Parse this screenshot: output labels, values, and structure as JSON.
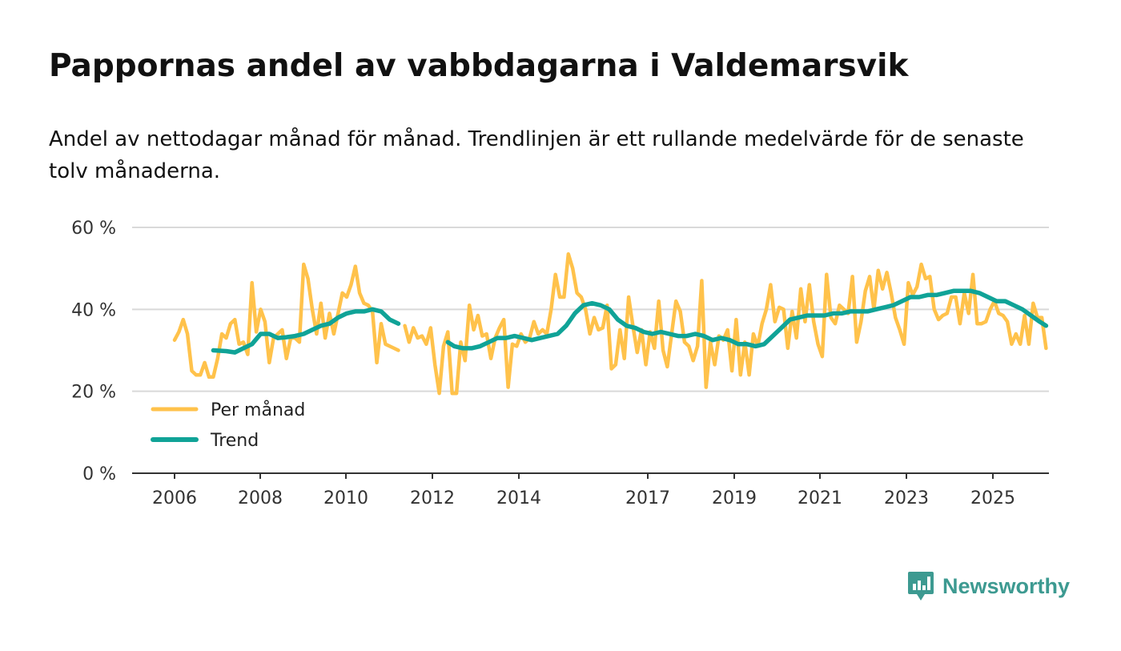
{
  "title": "Pappornas andel av vabbdagarna i Valdemarsvik",
  "subtitle": "Andel av nettodagar månad för månad. Trendlinjen är ett rullande medelvärde för de senaste tolv månaderna.",
  "brand": "Newsworthy",
  "colors": {
    "monthly": "#ffc24b",
    "trend": "#10a397",
    "grid": "#d9d9d9",
    "axis": "#333333",
    "brand": "#3d9a91"
  },
  "chart_data": {
    "type": "line",
    "xlabel": "",
    "ylabel": "",
    "xlim": [
      2006.0,
      2026.3
    ],
    "ylim": [
      0,
      60
    ],
    "y_ticks": [
      0,
      20,
      40,
      60
    ],
    "y_tick_labels": [
      "0 %",
      "20 %",
      "40 %",
      "60 %"
    ],
    "x_ticks": [
      2006,
      2008,
      2010,
      2012,
      2014,
      2017,
      2019,
      2021,
      2023,
      2025
    ],
    "x_tick_labels": [
      "2006",
      "2008",
      "2010",
      "2012",
      "2014",
      "2017",
      "2019",
      "2021",
      "2023",
      "2025"
    ],
    "legend": {
      "position": "bottom-left",
      "entries": [
        "Per månad",
        "Trend"
      ]
    },
    "series": [
      {
        "name": "Per månad",
        "points": [
          [
            2006.0,
            32.5
          ],
          [
            2006.1,
            34.5
          ],
          [
            2006.2,
            37.5
          ],
          [
            2006.3,
            34
          ],
          [
            2006.4,
            25
          ],
          [
            2006.5,
            24
          ],
          [
            2006.6,
            24
          ],
          [
            2006.7,
            27
          ],
          [
            2006.8,
            23.5
          ],
          [
            2006.9,
            23.5
          ],
          [
            2007.0,
            28
          ],
          [
            2007.1,
            34
          ],
          [
            2007.2,
            33
          ],
          [
            2007.3,
            36.5
          ],
          [
            2007.4,
            37.5
          ],
          [
            2007.5,
            31.5
          ],
          [
            2007.6,
            32
          ],
          [
            2007.7,
            29
          ],
          [
            2007.8,
            46.5
          ],
          [
            2007.9,
            34.5
          ],
          [
            2008.0,
            40
          ],
          [
            2008.1,
            37
          ],
          [
            2008.2,
            27
          ],
          [
            2008.3,
            33
          ],
          [
            2008.4,
            34
          ],
          [
            2008.5,
            35
          ],
          [
            2008.6,
            28
          ],
          [
            2008.7,
            33
          ],
          [
            2008.8,
            33
          ],
          [
            2008.9,
            32
          ],
          [
            2009.0,
            51
          ],
          [
            2009.1,
            47.5
          ],
          [
            2009.2,
            40
          ],
          [
            2009.3,
            34
          ],
          [
            2009.4,
            41.5
          ],
          [
            2009.5,
            33
          ],
          [
            2009.6,
            39
          ],
          [
            2009.7,
            34
          ],
          [
            2009.8,
            39
          ],
          [
            2009.9,
            44
          ],
          [
            2010.0,
            43
          ],
          [
            2010.1,
            46
          ],
          [
            2010.2,
            50.5
          ],
          [
            2010.3,
            44
          ],
          [
            2010.4,
            41.5
          ],
          [
            2010.5,
            41
          ],
          [
            2010.6,
            39.5
          ],
          [
            2010.7,
            27
          ],
          [
            2010.8,
            36.5
          ],
          [
            2010.9,
            31.5
          ],
          [
            2011.0,
            31
          ],
          [
            2011.1,
            30.5
          ],
          [
            2011.2,
            30
          ],
          null,
          [
            2011.35,
            36
          ],
          [
            2011.45,
            32
          ],
          [
            2011.55,
            35.5
          ],
          [
            2011.65,
            33
          ],
          [
            2011.75,
            33.5
          ],
          [
            2011.85,
            31.5
          ],
          [
            2011.95,
            35.5
          ],
          [
            2012.05,
            26.5
          ],
          [
            2012.15,
            19.5
          ],
          [
            2012.25,
            31
          ],
          [
            2012.35,
            34.5
          ],
          [
            2012.45,
            19.5
          ],
          [
            2012.55,
            19.5
          ],
          [
            2012.65,
            32
          ],
          [
            2012.75,
            27.5
          ],
          [
            2012.85,
            41
          ],
          [
            2012.95,
            35
          ],
          [
            2013.05,
            38.5
          ],
          [
            2013.15,
            33.5
          ],
          [
            2013.25,
            34
          ],
          [
            2013.35,
            28
          ],
          [
            2013.45,
            33
          ],
          [
            2013.55,
            35.5
          ],
          [
            2013.65,
            37.5
          ],
          [
            2013.75,
            21
          ],
          [
            2013.85,
            31.5
          ],
          [
            2013.95,
            31
          ],
          [
            2014.05,
            34
          ],
          [
            2014.15,
            32
          ],
          [
            2014.25,
            33
          ],
          [
            2014.35,
            37
          ],
          [
            2014.45,
            34
          ],
          [
            2014.55,
            35
          ],
          [
            2014.65,
            34
          ],
          [
            2014.75,
            40
          ],
          [
            2014.85,
            48.5
          ],
          [
            2014.95,
            43
          ],
          [
            2015.05,
            43
          ],
          [
            2015.15,
            53.5
          ],
          [
            2015.25,
            50
          ],
          [
            2015.35,
            44
          ],
          [
            2015.45,
            43
          ],
          [
            2015.55,
            40
          ],
          [
            2015.65,
            34
          ],
          [
            2015.75,
            38
          ],
          [
            2015.85,
            35
          ],
          [
            2015.95,
            35.5
          ],
          [
            2016.05,
            41
          ],
          [
            2016.15,
            25.5
          ],
          [
            2016.25,
            26.5
          ],
          [
            2016.35,
            35
          ],
          [
            2016.45,
            28
          ],
          [
            2016.55,
            43
          ],
          [
            2016.65,
            36
          ],
          [
            2016.75,
            29.5
          ],
          [
            2016.85,
            35
          ],
          [
            2016.95,
            26.5
          ],
          [
            2017.05,
            34.5
          ],
          [
            2017.15,
            30.5
          ],
          [
            2017.25,
            42
          ],
          [
            2017.35,
            30
          ],
          [
            2017.45,
            26
          ],
          [
            2017.55,
            34
          ],
          [
            2017.65,
            42
          ],
          [
            2017.75,
            39.5
          ],
          [
            2017.85,
            32
          ],
          [
            2017.95,
            31
          ],
          [
            2018.05,
            27.5
          ],
          [
            2018.15,
            31
          ],
          [
            2018.25,
            47
          ],
          [
            2018.35,
            21
          ],
          [
            2018.45,
            32
          ],
          [
            2018.55,
            26.5
          ],
          [
            2018.65,
            33.5
          ],
          [
            2018.75,
            32.5
          ],
          [
            2018.85,
            35
          ],
          [
            2018.95,
            25
          ],
          [
            2019.05,
            37.5
          ],
          [
            2019.15,
            24
          ],
          [
            2019.25,
            32
          ],
          [
            2019.35,
            24
          ],
          [
            2019.45,
            34
          ],
          [
            2019.55,
            31
          ],
          [
            2019.65,
            36.5
          ],
          [
            2019.75,
            40
          ],
          [
            2019.85,
            46
          ],
          [
            2019.95,
            37
          ],
          [
            2020.05,
            40.5
          ],
          [
            2020.15,
            40
          ],
          [
            2020.25,
            30.5
          ],
          [
            2020.35,
            39.5
          ],
          [
            2020.45,
            33
          ],
          [
            2020.55,
            45
          ],
          [
            2020.65,
            37
          ],
          [
            2020.75,
            46
          ],
          [
            2020.85,
            37
          ],
          [
            2020.95,
            31.5
          ],
          [
            2021.05,
            28.5
          ],
          [
            2021.15,
            48.5
          ],
          [
            2021.25,
            38
          ],
          [
            2021.35,
            36.5
          ],
          [
            2021.45,
            41
          ],
          [
            2021.55,
            40
          ],
          [
            2021.65,
            39
          ],
          [
            2021.75,
            48
          ],
          [
            2021.85,
            32
          ],
          [
            2021.95,
            37
          ],
          [
            2022.05,
            44.5
          ],
          [
            2022.15,
            48
          ],
          [
            2022.25,
            40
          ],
          [
            2022.35,
            49.5
          ],
          [
            2022.45,
            45
          ],
          [
            2022.55,
            49
          ],
          [
            2022.65,
            44
          ],
          [
            2022.75,
            38
          ],
          [
            2022.85,
            35
          ],
          [
            2022.95,
            31.5
          ],
          [
            2023.05,
            46.5
          ],
          [
            2023.15,
            43.5
          ],
          [
            2023.25,
            45.5
          ],
          [
            2023.35,
            51
          ],
          [
            2023.45,
            47.5
          ],
          [
            2023.55,
            48
          ],
          [
            2023.65,
            40
          ],
          [
            2023.75,
            37.5
          ],
          [
            2023.85,
            38.5
          ],
          [
            2023.95,
            39
          ],
          [
            2024.05,
            43
          ],
          [
            2024.15,
            43
          ],
          [
            2024.25,
            36.5
          ],
          [
            2024.35,
            44
          ],
          [
            2024.45,
            39
          ],
          [
            2024.55,
            48.5
          ],
          [
            2024.65,
            36.5
          ],
          [
            2024.75,
            36.5
          ],
          [
            2024.85,
            37
          ],
          [
            2024.95,
            40
          ],
          [
            2025.05,
            42
          ],
          [
            2025.15,
            39
          ],
          [
            2025.25,
            38.5
          ],
          [
            2025.35,
            37
          ],
          [
            2025.45,
            31.5
          ],
          [
            2025.55,
            34
          ],
          [
            2025.65,
            31.5
          ],
          [
            2025.75,
            38.5
          ],
          [
            2025.85,
            31.5
          ],
          [
            2025.95,
            41.5
          ],
          [
            2026.05,
            38
          ],
          [
            2026.15,
            38
          ],
          [
            2026.25,
            30.5
          ]
        ]
      },
      {
        "name": "Trend",
        "points": [
          [
            2006.9,
            30
          ],
          [
            2007.2,
            29.8
          ],
          [
            2007.4,
            29.5
          ],
          [
            2007.6,
            30.5
          ],
          [
            2007.8,
            31.5
          ],
          [
            2008.0,
            34
          ],
          [
            2008.2,
            34
          ],
          [
            2008.4,
            33
          ],
          [
            2008.6,
            33.2
          ],
          [
            2008.8,
            33.5
          ],
          [
            2009.0,
            34
          ],
          [
            2009.2,
            35
          ],
          [
            2009.4,
            36
          ],
          [
            2009.6,
            36.5
          ],
          [
            2009.8,
            38
          ],
          [
            2010.0,
            39
          ],
          [
            2010.2,
            39.5
          ],
          [
            2010.4,
            39.5
          ],
          [
            2010.6,
            40
          ],
          [
            2010.8,
            39.5
          ],
          [
            2011.0,
            37.5
          ],
          [
            2011.2,
            36.5
          ],
          null,
          [
            2012.35,
            32
          ],
          [
            2012.5,
            31
          ],
          [
            2012.7,
            30.5
          ],
          [
            2012.9,
            30.5
          ],
          [
            2013.1,
            31
          ],
          [
            2013.3,
            32
          ],
          [
            2013.5,
            33
          ],
          [
            2013.7,
            33
          ],
          [
            2013.9,
            33.5
          ],
          [
            2014.1,
            33
          ],
          [
            2014.3,
            32.5
          ],
          [
            2014.5,
            33
          ],
          [
            2014.7,
            33.5
          ],
          [
            2014.9,
            34
          ],
          [
            2015.1,
            36
          ],
          [
            2015.3,
            39
          ],
          [
            2015.5,
            41
          ],
          [
            2015.7,
            41.5
          ],
          [
            2015.9,
            41
          ],
          [
            2016.1,
            40
          ],
          [
            2016.3,
            37.5
          ],
          [
            2016.5,
            36
          ],
          [
            2016.7,
            35.5
          ],
          [
            2016.9,
            34.5
          ],
          [
            2017.1,
            34
          ],
          [
            2017.3,
            34.5
          ],
          [
            2017.5,
            34
          ],
          [
            2017.7,
            33.5
          ],
          [
            2017.9,
            33.5
          ],
          [
            2018.1,
            34
          ],
          [
            2018.3,
            33.5
          ],
          [
            2018.5,
            32.5
          ],
          [
            2018.7,
            33
          ],
          [
            2018.9,
            32.5
          ],
          [
            2019.1,
            31.5
          ],
          [
            2019.3,
            31.5
          ],
          [
            2019.5,
            31
          ],
          [
            2019.7,
            31.5
          ],
          [
            2019.9,
            33.5
          ],
          [
            2020.1,
            35.5
          ],
          [
            2020.3,
            37.5
          ],
          [
            2020.5,
            38
          ],
          [
            2020.7,
            38.5
          ],
          [
            2020.9,
            38.5
          ],
          [
            2021.1,
            38.5
          ],
          [
            2021.3,
            39
          ],
          [
            2021.5,
            39
          ],
          [
            2021.7,
            39.5
          ],
          [
            2021.9,
            39.5
          ],
          [
            2022.1,
            39.5
          ],
          [
            2022.3,
            40
          ],
          [
            2022.5,
            40.5
          ],
          [
            2022.7,
            41
          ],
          [
            2022.9,
            42
          ],
          [
            2023.1,
            43
          ],
          [
            2023.3,
            43
          ],
          [
            2023.5,
            43.5
          ],
          [
            2023.7,
            43.5
          ],
          [
            2023.9,
            44
          ],
          [
            2024.1,
            44.5
          ],
          [
            2024.3,
            44.5
          ],
          [
            2024.5,
            44.5
          ],
          [
            2024.7,
            44
          ],
          [
            2024.9,
            43
          ],
          [
            2025.1,
            42
          ],
          [
            2025.3,
            42
          ],
          [
            2025.5,
            41
          ],
          [
            2025.7,
            40
          ],
          [
            2025.9,
            38.5
          ],
          [
            2026.1,
            37
          ],
          [
            2026.25,
            36
          ]
        ]
      }
    ]
  }
}
